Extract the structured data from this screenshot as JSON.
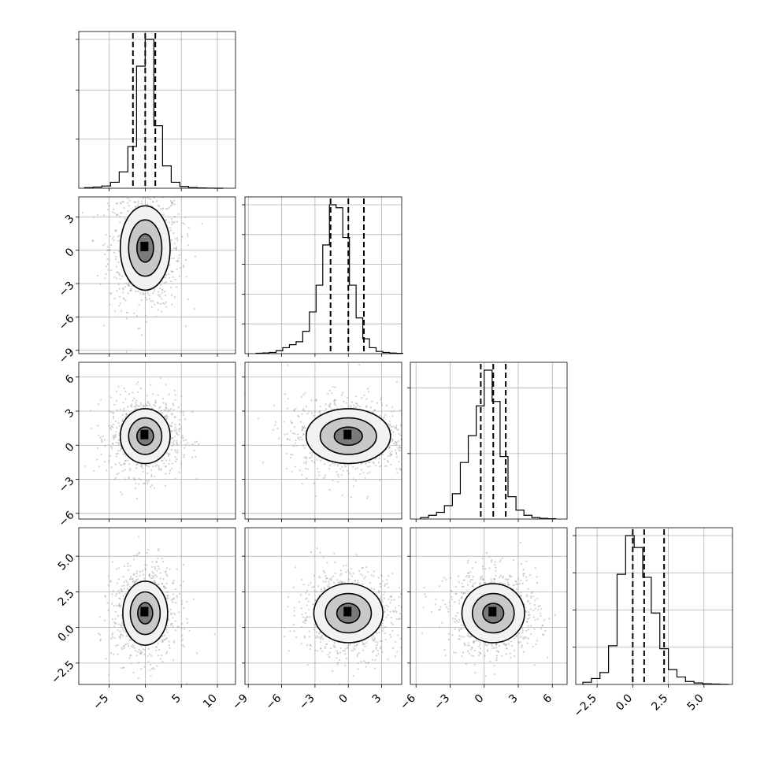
{
  "chart_data": {
    "type": "corner",
    "parameters": 4,
    "grid": true,
    "colors": {
      "line": "#000000",
      "grid": "#b0b0b0",
      "points": "#9a9a9a",
      "density": "#000000"
    },
    "hist_bin_edges": [
      [
        -8.4,
        -7.2,
        -6.0,
        -4.8,
        -3.6,
        -2.4,
        -1.2,
        0.0,
        1.2,
        2.4,
        3.6,
        4.8,
        6.0,
        7.2,
        8.4,
        9.6,
        10.8
      ],
      [
        -8.3,
        -7.7,
        -7.1,
        -6.5,
        -5.9,
        -5.3,
        -4.7,
        -4.1,
        -3.5,
        -2.9,
        -2.3,
        -1.7,
        -1.1,
        -0.5,
        0.1,
        0.7,
        1.3,
        1.9,
        2.5,
        3.1,
        3.7,
        4.3,
        4.9
      ],
      [
        -5.6,
        -4.9,
        -4.2,
        -3.5,
        -2.8,
        -2.1,
        -1.4,
        -0.7,
        0.0,
        0.7,
        1.4,
        2.1,
        2.8,
        3.5,
        4.2,
        4.9,
        5.6,
        6.3
      ],
      [
        -3.5,
        -2.9,
        -2.3,
        -1.7,
        -1.1,
        -0.5,
        0.1,
        0.7,
        1.3,
        1.9,
        2.5,
        3.1,
        3.7,
        4.3,
        4.9,
        5.5,
        6.1,
        6.7
      ]
    ],
    "hist_counts": [
      [
        4,
        8,
        15,
        40,
        110,
        280,
        820,
        1000,
        420,
        150,
        40,
        12,
        5,
        2,
        1,
        0
      ],
      [
        3,
        5,
        8,
        20,
        40,
        60,
        80,
        150,
        280,
        460,
        730,
        1000,
        980,
        780,
        460,
        240,
        100,
        40,
        15,
        8,
        4,
        2
      ],
      [
        10,
        25,
        45,
        90,
        170,
        380,
        560,
        760,
        1000,
        790,
        420,
        150,
        60,
        25,
        10,
        5,
        2
      ],
      [
        15,
        40,
        80,
        260,
        740,
        1000,
        920,
        720,
        480,
        240,
        100,
        50,
        20,
        10,
        5,
        3,
        1
      ]
    ],
    "quantiles": [
      [
        -1.7,
        0.0,
        1.4
      ],
      [
        -1.6,
        0.0,
        1.4
      ],
      [
        -0.3,
        0.8,
        1.9
      ],
      [
        0.0,
        0.8,
        2.2
      ]
    ],
    "pair_centers": {
      "1_0": [
        0.0,
        0.2
      ],
      "2_0": [
        0.0,
        0.8
      ],
      "2_1": [
        0.0,
        0.8
      ],
      "3_0": [
        0.0,
        1.0
      ],
      "3_1": [
        0.0,
        1.0
      ],
      "3_2": [
        0.8,
        1.0
      ]
    },
    "pair_widths": {
      "1_0": [
        2.0,
        2.2
      ],
      "2_0": [
        2.0,
        1.4
      ],
      "2_1": [
        2.2,
        1.4
      ],
      "3_0": [
        1.8,
        1.3
      ],
      "3_1": [
        1.8,
        1.2
      ],
      "3_2": [
        1.6,
        1.2
      ]
    },
    "contour_levels_sigma": [
      0.5,
      1.0,
      1.5
    ],
    "xticks": [
      {
        "values": [
          -5,
          0,
          5,
          10
        ],
        "labels": [
          "−5",
          "0",
          "5",
          "10"
        ]
      },
      {
        "values": [
          -9,
          -6,
          -3,
          0,
          3
        ],
        "labels": [
          "−9",
          "−6",
          "−3",
          "0",
          "3"
        ]
      },
      {
        "values": [
          -6,
          -3,
          0,
          3,
          6
        ],
        "labels": [
          "−6",
          "−3",
          "0",
          "3",
          "6"
        ]
      },
      {
        "values": [
          -2.5,
          0.0,
          2.5,
          5.0
        ],
        "labels": [
          "−2.5",
          "0.0",
          "2.5",
          "5.0"
        ]
      }
    ],
    "yticks": [
      null,
      {
        "values": [
          -9,
          -6,
          -3,
          0,
          3
        ],
        "labels": [
          "−9",
          "−6",
          "−3",
          "0",
          "3"
        ]
      },
      {
        "values": [
          -6,
          -3,
          0,
          3,
          6
        ],
        "labels": [
          "−6",
          "−3",
          "0",
          "3",
          "6"
        ]
      },
      {
        "values": [
          -2.5,
          0.0,
          2.5,
          5.0
        ],
        "labels": [
          "−2.5",
          "0.0",
          "2.5",
          "5.0"
        ]
      }
    ],
    "axis_ranges": [
      [
        -9.2,
        12.5
      ],
      [
        -9.3,
        4.8
      ],
      [
        -6.5,
        7.3
      ],
      [
        -4.0,
        7.0
      ]
    ],
    "hist_ymax_ticks": [
      [
        0.33,
        0.66,
        1.0
      ],
      [
        0.2,
        0.4,
        0.6,
        0.8,
        1.0
      ],
      [
        0.44,
        0.88
      ],
      [
        0.25,
        0.5,
        0.75,
        1.0
      ]
    ]
  }
}
